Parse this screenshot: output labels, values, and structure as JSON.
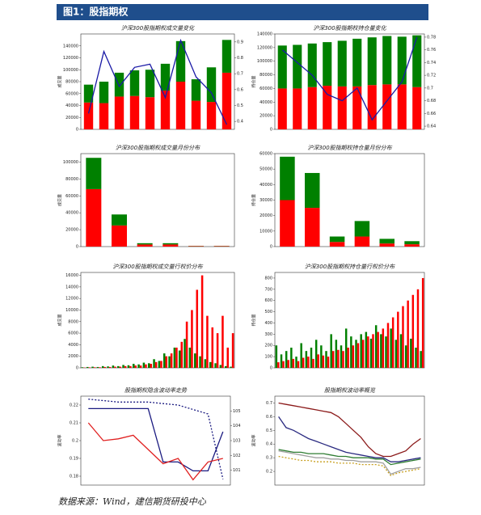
{
  "header": {
    "title": "图1：股指期权"
  },
  "footer": {
    "source": "数据来源：Wind，建信期货研投中心"
  },
  "chart_data": [
    {
      "type": "bar",
      "stacked": true,
      "title": "沪深300股指期权成交量变化",
      "ylabel": "成交量",
      "categories": [
        null,
        null,
        null,
        null,
        null,
        null,
        null,
        null,
        null,
        null
      ],
      "ylim": [
        0,
        160000
      ],
      "yticks": [
        0,
        20000,
        40000,
        60000,
        80000,
        100000,
        120000,
        140000
      ],
      "y2lim": [
        0.35,
        0.95
      ],
      "y2ticks": [
        0.4,
        0.5,
        0.6,
        0.7,
        0.8,
        0.9
      ],
      "series": [
        {
          "color": "#ff0000",
          "values": [
            45000,
            44000,
            55000,
            56000,
            54000,
            65000,
            80000,
            48000,
            46000,
            95000
          ]
        },
        {
          "color": "#008000",
          "values": [
            30000,
            36000,
            40000,
            43000,
            46000,
            45000,
            68000,
            36000,
            58000,
            55000
          ]
        },
        {
          "color": "#1a1aa6",
          "axis": "y2",
          "values": [
            0.45,
            0.84,
            0.62,
            0.74,
            0.76,
            0.55,
            0.91,
            0.68,
            0.58,
            0.38
          ]
        }
      ]
    },
    {
      "type": "bar",
      "stacked": true,
      "title": "沪深300股指期权持仓量变化",
      "ylabel": "持仓量",
      "categories": [
        null,
        null,
        null,
        null,
        null,
        null,
        null,
        null,
        null,
        null
      ],
      "ylim": [
        0,
        140000
      ],
      "yticks": [
        0,
        20000,
        40000,
        60000,
        80000,
        100000,
        120000,
        140000
      ],
      "y2lim": [
        0.635,
        0.785
      ],
      "y2ticks": [
        0.64,
        0.66,
        0.68,
        0.7,
        0.72,
        0.74,
        0.76,
        0.78
      ],
      "series": [
        {
          "color": "#ff0000",
          "values": [
            60000,
            60000,
            62000,
            64000,
            63000,
            63000,
            65000,
            66000,
            66000,
            62000
          ]
        },
        {
          "color": "#008000",
          "values": [
            63000,
            64000,
            64000,
            64000,
            67000,
            70000,
            70000,
            71000,
            70000,
            76000
          ]
        },
        {
          "color": "#1a1aa6",
          "axis": "y2",
          "values": [
            0.76,
            0.74,
            0.72,
            0.69,
            0.68,
            0.7,
            0.65,
            0.68,
            0.71,
            0.78
          ]
        }
      ]
    },
    {
      "type": "bar",
      "stacked": true,
      "title": "沪深300股指期权成交量月份分布",
      "ylabel": "成交量",
      "categories": [
        null,
        null,
        null,
        null,
        null,
        null
      ],
      "ylim": [
        0,
        110000
      ],
      "yticks": [
        0,
        20000,
        40000,
        60000,
        80000,
        100000
      ],
      "series": [
        {
          "color": "#ff0000",
          "values": [
            68000,
            25000,
            2500,
            2500,
            500,
            500
          ]
        },
        {
          "color": "#008000",
          "values": [
            37000,
            13000,
            1500,
            1500,
            300,
            300
          ]
        }
      ]
    },
    {
      "type": "bar",
      "stacked": true,
      "title": "沪深300股指期权持仓量月份分布",
      "ylabel": "持仓量",
      "categories": [
        null,
        null,
        null,
        null,
        null,
        null
      ],
      "ylim": [
        0,
        60000
      ],
      "yticks": [
        0,
        10000,
        20000,
        30000,
        40000,
        50000,
        60000
      ],
      "series": [
        {
          "color": "#ff0000",
          "values": [
            30000,
            25000,
            3000,
            6500,
            2000,
            1500
          ]
        },
        {
          "color": "#008000",
          "values": [
            28000,
            22500,
            3500,
            10000,
            3000,
            2000
          ]
        }
      ]
    },
    {
      "type": "bar",
      "stacked": false,
      "title": "沪深300股指期权成交量行权价分布",
      "ylabel": "成交量",
      "categories": [
        null,
        null,
        null,
        null,
        null,
        null,
        null,
        null,
        null,
        null,
        null,
        null,
        null,
        null,
        null,
        null,
        null,
        null,
        null,
        null,
        null,
        null,
        null,
        null,
        null,
        null,
        null,
        null,
        null,
        null
      ],
      "ylim": [
        0,
        16500
      ],
      "yticks": [
        0,
        2000,
        4000,
        6000,
        8000,
        10000,
        12000,
        14000,
        16000
      ],
      "series": [
        {
          "color": "#008000",
          "values": [
            100,
            150,
            200,
            150,
            300,
            250,
            400,
            300,
            500,
            450,
            700,
            600,
            900,
            800,
            1500,
            1200,
            2500,
            2000,
            3500,
            3000,
            5000,
            3500,
            2500,
            2000,
            1500,
            1000,
            800,
            500,
            300,
            200
          ]
        },
        {
          "color": "#ff0000",
          "values": [
            50,
            80,
            100,
            100,
            150,
            150,
            200,
            200,
            300,
            300,
            400,
            400,
            600,
            700,
            1000,
            1200,
            2000,
            2500,
            3500,
            4500,
            8000,
            10000,
            13500,
            16000,
            9000,
            7000,
            6000,
            9000,
            3500,
            6000
          ]
        }
      ]
    },
    {
      "type": "bar",
      "stacked": false,
      "title": "沪深300股指期权持仓量行权价分布",
      "ylabel": "持仓量",
      "categories": [
        null,
        null,
        null,
        null,
        null,
        null,
        null,
        null,
        null,
        null,
        null,
        null,
        null,
        null,
        null,
        null,
        null,
        null,
        null,
        null,
        null,
        null,
        null,
        null,
        null,
        null,
        null,
        null,
        null,
        null
      ],
      "ylim": [
        0,
        850
      ],
      "yticks": [
        0,
        100,
        200,
        300,
        400,
        500,
        600,
        700,
        800
      ],
      "series": [
        {
          "color": "#008000",
          "values": [
            200,
            120,
            150,
            180,
            100,
            220,
            150,
            180,
            250,
            200,
            150,
            300,
            250,
            200,
            350,
            280,
            250,
            300,
            320,
            260,
            380,
            300,
            280,
            350,
            250,
            300,
            200,
            260,
            180,
            150
          ]
        },
        {
          "color": "#ff0000",
          "values": [
            50,
            60,
            70,
            80,
            60,
            90,
            100,
            80,
            120,
            110,
            100,
            150,
            160,
            150,
            180,
            200,
            220,
            250,
            280,
            300,
            320,
            350,
            400,
            450,
            500,
            550,
            600,
            650,
            700,
            800
          ]
        }
      ]
    },
    {
      "type": "line",
      "title": "股指期权隐含波动率走势",
      "ylabel": "波动率",
      "categories": [
        null,
        null,
        null,
        null,
        null,
        null,
        null,
        null,
        null,
        null
      ],
      "ylim": [
        0.175,
        0.225
      ],
      "yticks": [
        0.18,
        0.19,
        0.2,
        0.21,
        0.22
      ],
      "y2lim": [
        100,
        106
      ],
      "y2ticks": [
        101,
        102,
        103,
        104,
        105
      ],
      "series": [
        {
          "color": "#1a1a80",
          "values": [
            0.218,
            0.218,
            0.218,
            0.218,
            0.218,
            0.188,
            0.188,
            0.183,
            0.183,
            0.205
          ]
        },
        {
          "color": "#e02020",
          "values": [
            0.21,
            0.2,
            0.201,
            0.203,
            0.195,
            0.187,
            0.19,
            0.178,
            0.188,
            0.19
          ]
        },
        {
          "color": "#1a1a80",
          "axis": "y2",
          "dash": true,
          "values": [
            105.8,
            105.7,
            105.6,
            105.6,
            105.6,
            105.5,
            105.4,
            105.1,
            104.8,
            100.4
          ]
        }
      ]
    },
    {
      "type": "line",
      "title": "股指期权波动率概览",
      "ylabel": "波动率",
      "categories": [
        null,
        null,
        null,
        null,
        null,
        null,
        null,
        null,
        null,
        null,
        null,
        null,
        null,
        null,
        null,
        null,
        null,
        null,
        null,
        null
      ],
      "ylim": [
        0.1,
        0.75
      ],
      "yticks": [
        0.2,
        0.3,
        0.4,
        0.5,
        0.6,
        0.7
      ],
      "series": [
        {
          "color": "#8b1a1a",
          "values": [
            0.7,
            0.69,
            0.68,
            0.67,
            0.66,
            0.65,
            0.64,
            0.63,
            0.6,
            0.55,
            0.5,
            0.45,
            0.38,
            0.33,
            0.31,
            0.31,
            0.33,
            0.35,
            0.4,
            0.44
          ]
        },
        {
          "color": "#2a2a80",
          "values": [
            0.6,
            0.52,
            0.5,
            0.47,
            0.44,
            0.42,
            0.4,
            0.38,
            0.36,
            0.34,
            0.33,
            0.32,
            0.31,
            0.3,
            0.3,
            0.27,
            0.27,
            0.28,
            0.29,
            0.3
          ]
        },
        {
          "color": "#2e7d32",
          "values": [
            0.36,
            0.35,
            0.34,
            0.34,
            0.33,
            0.33,
            0.33,
            0.32,
            0.31,
            0.31,
            0.3,
            0.3,
            0.3,
            0.29,
            0.29,
            0.25,
            0.26,
            0.27,
            0.28,
            0.29
          ]
        },
        {
          "color": "#a0a0a0",
          "values": [
            0.35,
            0.34,
            0.33,
            0.32,
            0.31,
            0.3,
            0.3,
            0.29,
            0.29,
            0.28,
            0.28,
            0.27,
            0.27,
            0.27,
            0.26,
            0.18,
            0.2,
            0.22,
            0.22,
            0.23
          ]
        },
        {
          "color": "#c8a020",
          "dash": true,
          "values": [
            0.31,
            0.3,
            0.29,
            0.28,
            0.28,
            0.27,
            0.27,
            0.27,
            0.26,
            0.26,
            0.26,
            0.25,
            0.25,
            0.25,
            0.24,
            0.17,
            0.19,
            0.2,
            0.21,
            0.22
          ]
        }
      ]
    }
  ]
}
